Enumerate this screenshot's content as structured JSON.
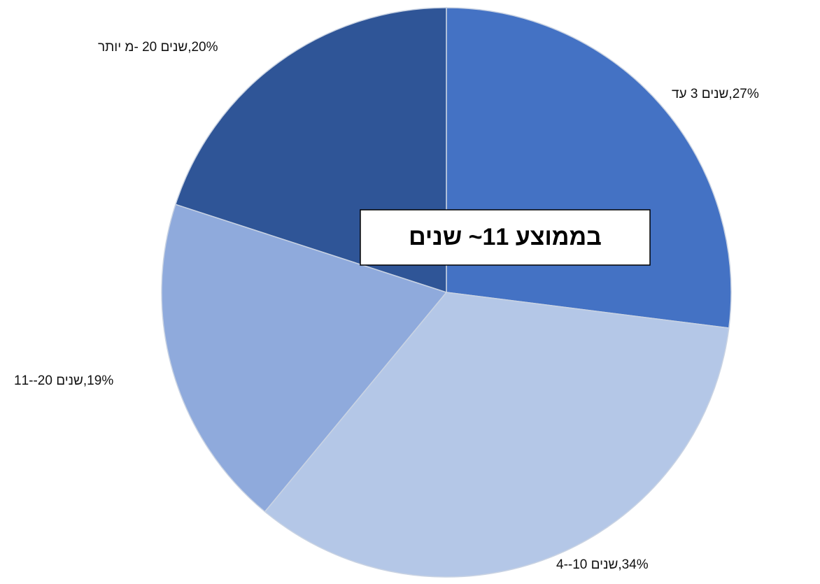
{
  "chart_data": {
    "type": "pie",
    "categories": [
      "דע 3 םינש,27%",
      "4--10 םינש,34%",
      "11--20 םינש,19%",
      "רתוי מ- 20 םינש,20%"
    ],
    "values": [
      27,
      34,
      19,
      20
    ],
    "colors": [
      "#4472c4",
      "#b4c7e7",
      "#8faadc",
      "#2f5597"
    ],
    "annotation": "בממוצע 11~ שנים"
  }
}
